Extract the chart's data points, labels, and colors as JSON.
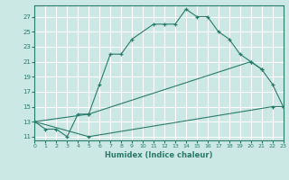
{
  "xlabel": "Humidex (Indice chaleur)",
  "bg_color": "#cce8e4",
  "grid_color": "#ffffff",
  "line_color": "#2a7a6a",
  "curve1_x": [
    0,
    1,
    2,
    3,
    4,
    5,
    6,
    7,
    8,
    9,
    11,
    12,
    13,
    14,
    15,
    16,
    17,
    18,
    19,
    20,
    21
  ],
  "curve1_y": [
    13,
    12,
    12,
    11,
    14,
    14,
    18,
    22,
    22,
    24,
    26,
    26,
    26,
    28,
    27,
    27,
    25,
    24,
    22,
    21,
    20
  ],
  "curve2_x": [
    0,
    5,
    20,
    21,
    22,
    23
  ],
  "curve2_y": [
    13,
    14,
    21,
    20,
    18,
    15
  ],
  "curve3_x": [
    0,
    5,
    22,
    23
  ],
  "curve3_y": [
    13,
    11,
    15,
    15
  ],
  "xlim": [
    0,
    23
  ],
  "ylim": [
    10.5,
    28.5
  ],
  "yticks": [
    11,
    13,
    15,
    17,
    19,
    21,
    23,
    25,
    27
  ],
  "xticks": [
    0,
    1,
    2,
    3,
    4,
    5,
    6,
    7,
    8,
    9,
    10,
    11,
    12,
    13,
    14,
    15,
    16,
    17,
    18,
    19,
    20,
    21,
    22,
    23
  ]
}
